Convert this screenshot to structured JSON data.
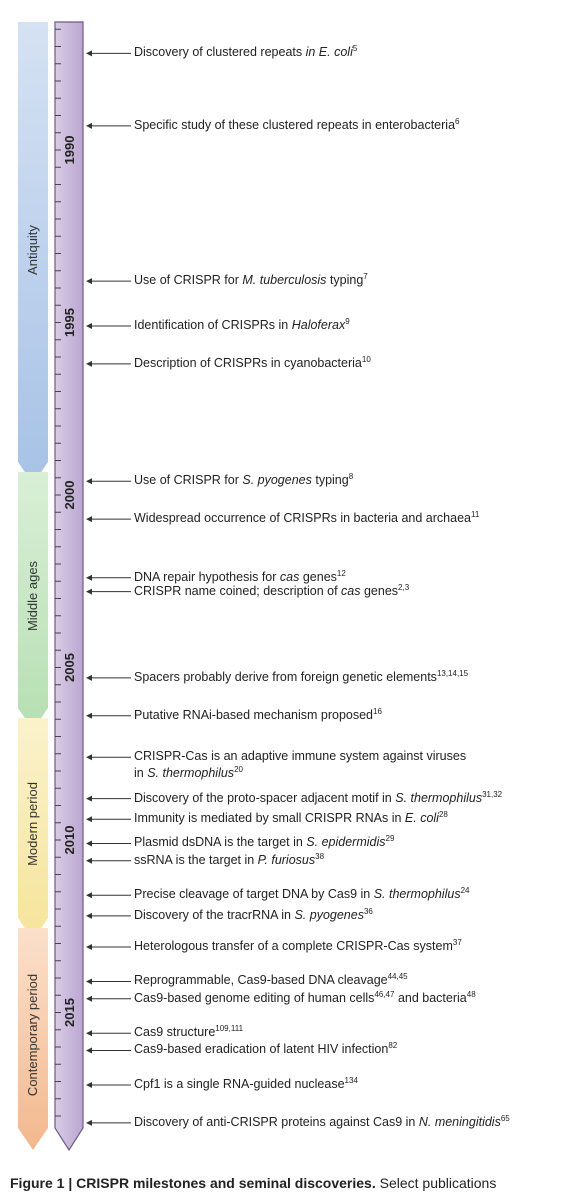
{
  "periods": [
    {
      "label": "Antiquity",
      "color": "#a9c4e6"
    },
    {
      "label": "Middle ages",
      "color": "#bfe3bc"
    },
    {
      "label": "Modern period",
      "color": "#f7e8a6"
    },
    {
      "label": "Contemporary period",
      "color": "#f6c7a3"
    }
  ],
  "timeline": {
    "bar_color": "#c9b8d9",
    "year_range": [
      1986.8,
      2017.4
    ]
  },
  "years": [
    "1990",
    "1995",
    "2000",
    "2005",
    "2010",
    "2015"
  ],
  "events": [
    {
      "year": 1987.2,
      "parts": [
        {
          "t": "Discovery of clustered repeats "
        },
        {
          "t": "in E. coli",
          "i": true
        },
        {
          "t": "5",
          "sup": true
        }
      ]
    },
    {
      "year": 1989.3,
      "parts": [
        {
          "t": "Specific study of these clustered repeats in enterobacteria"
        },
        {
          "t": "6",
          "sup": true
        }
      ]
    },
    {
      "year": 1993.8,
      "parts": [
        {
          "t": "Use of CRISPR for "
        },
        {
          "t": "M. tuberculosis",
          "i": true
        },
        {
          "t": " typing"
        },
        {
          "t": "7",
          "sup": true
        }
      ]
    },
    {
      "year": 1995.1,
      "parts": [
        {
          "t": "Identification of CRISPRs in "
        },
        {
          "t": "Haloferax",
          "i": true
        },
        {
          "t": "9",
          "sup": true
        }
      ]
    },
    {
      "year": 1996.2,
      "parts": [
        {
          "t": "Description of CRISPRs in cyanobacteria"
        },
        {
          "t": "10",
          "sup": true
        }
      ]
    },
    {
      "year": 1999.6,
      "parts": [
        {
          "t": "Use of CRISPR for "
        },
        {
          "t": "S. pyogenes",
          "i": true
        },
        {
          "t": " typing"
        },
        {
          "t": "8",
          "sup": true
        }
      ]
    },
    {
      "year": 2000.7,
      "parts": [
        {
          "t": "Widespread occurrence of CRISPRs in bacteria and archaea"
        },
        {
          "t": "11",
          "sup": true
        }
      ]
    },
    {
      "year": 2002.4,
      "parts": [
        {
          "t": "DNA repair hypothesis for "
        },
        {
          "t": "cas",
          "i": true
        },
        {
          "t": " genes"
        },
        {
          "t": "12",
          "sup": true
        }
      ]
    },
    {
      "year": 2002.8,
      "parts": [
        {
          "t": "CRISPR name coined; description of "
        },
        {
          "t": "cas",
          "i": true
        },
        {
          "t": " genes"
        },
        {
          "t": "2,3",
          "sup": true
        }
      ]
    },
    {
      "year": 2005.3,
      "parts": [
        {
          "t": "Spacers probably derive from foreign genetic elements"
        },
        {
          "t": "13,14,15",
          "sup": true
        }
      ]
    },
    {
      "year": 2006.4,
      "parts": [
        {
          "t": "Putative RNAi-based mechanism proposed"
        },
        {
          "t": "16",
          "sup": true
        }
      ]
    },
    {
      "year": 2007.6,
      "parts": [
        {
          "t": "CRISPR-Cas is an adaptive immune system against viruses"
        }
      ]
    },
    {
      "year": 2008.1,
      "parts": [
        {
          "t": "in "
        },
        {
          "t": "S. thermophilus",
          "i": true
        },
        {
          "t": "20",
          "sup": true
        }
      ]
    },
    {
      "year": 2008.8,
      "parts": [
        {
          "t": "Discovery of the proto-spacer adjacent motif in "
        },
        {
          "t": "S. thermophilus",
          "i": true
        },
        {
          "t": "31,32",
          "sup": true
        }
      ]
    },
    {
      "year": 2009.4,
      "parts": [
        {
          "t": "Immunity is mediated by small CRISPR RNAs in "
        },
        {
          "t": "E. coli",
          "i": true
        },
        {
          "t": "28",
          "sup": true
        }
      ]
    },
    {
      "year": 2010.1,
      "parts": [
        {
          "t": "Plasmid dsDNA is the target in "
        },
        {
          "t": "S. epidermidis",
          "i": true
        },
        {
          "t": "29",
          "sup": true
        }
      ]
    },
    {
      "year": 2010.6,
      "parts": [
        {
          "t": "ssRNA is the target in "
        },
        {
          "t": "P. furiosus",
          "i": true
        },
        {
          "t": "38",
          "sup": true
        }
      ]
    },
    {
      "year": 2011.6,
      "parts": [
        {
          "t": "Precise cleavage of target DNA by Cas9 in "
        },
        {
          "t": "S. thermophilus",
          "i": true
        },
        {
          "t": "24",
          "sup": true
        }
      ]
    },
    {
      "year": 2012.2,
      "parts": [
        {
          "t": "Discovery of the tracrRNA in "
        },
        {
          "t": "S. pyogenes",
          "i": true
        },
        {
          "t": "36",
          "sup": true
        }
      ]
    },
    {
      "year": 2013.1,
      "parts": [
        {
          "t": "Heterologous transfer of a complete CRISPR-Cas system"
        },
        {
          "t": "37",
          "sup": true
        }
      ]
    },
    {
      "year": 2014.1,
      "parts": [
        {
          "t": "Reprogrammable, Cas9-based DNA cleavage"
        },
        {
          "t": "44,45",
          "sup": true
        }
      ]
    },
    {
      "year": 2014.6,
      "parts": [
        {
          "t": "Cas9-based genome editing of human cells"
        },
        {
          "t": "46,47",
          "sup": true
        },
        {
          "t": " and bacteria"
        },
        {
          "t": "48",
          "sup": true
        }
      ]
    },
    {
      "year": 2015.6,
      "parts": [
        {
          "t": "Cas9 structure"
        },
        {
          "t": "109,111",
          "sup": true
        }
      ]
    },
    {
      "year": 2016.1,
      "parts": [
        {
          "t": "Cas9-based eradication of latent HIV infection"
        },
        {
          "t": "82",
          "sup": true
        }
      ]
    },
    {
      "year": 2017.1,
      "parts": [
        {
          "t": "Cpf1 is a single RNA-guided nuclease"
        },
        {
          "t": "134",
          "sup": true
        }
      ]
    },
    {
      "year": 2018.2,
      "parts": [
        {
          "t": "Discovery of anti-CRISPR proteins against Cas9 in "
        },
        {
          "t": "N. meningitidis",
          "i": true
        },
        {
          "t": "65",
          "sup": true
        }
      ]
    }
  ],
  "caption": {
    "title": "Figure 1 | CRISPR milestones and seminal discoveries.",
    "text": " Select publications"
  }
}
